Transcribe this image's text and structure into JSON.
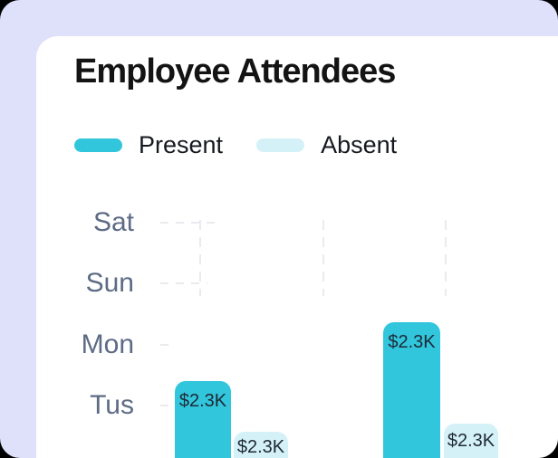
{
  "card": {
    "title": "Employee Attendees"
  },
  "colors": {
    "page_background": "#DFE1FA",
    "card_background": "#FFFFFF",
    "accent_present": "#31C6DC",
    "accent_absent": "#D5F1F8",
    "day_label": "#5D6B85",
    "grid": "#E9EBEF",
    "title_text": "#141414",
    "bar_label_text": "#1F2937"
  },
  "chart_data": {
    "type": "bar",
    "title": "Employee Attendees",
    "legend_entries": [
      "Present",
      "Absent"
    ],
    "legend_position": "top-left",
    "grid": "dashed, partial (fading), vertical and horizontal segments",
    "y_tick_labels": [
      "Sat",
      "Sun",
      "Mon",
      "Tus"
    ],
    "groups": [
      {
        "present_label": "$2.3K",
        "absent_label": "$2.3K",
        "present_relative_height": 0.53,
        "absent_relative_height": 0.17
      },
      {
        "present_label": "$2.3K",
        "absent_label": "$2.3K",
        "present_relative_height": 0.95,
        "absent_relative_height": 0.23
      }
    ],
    "x_tick_labels_visible": false
  }
}
